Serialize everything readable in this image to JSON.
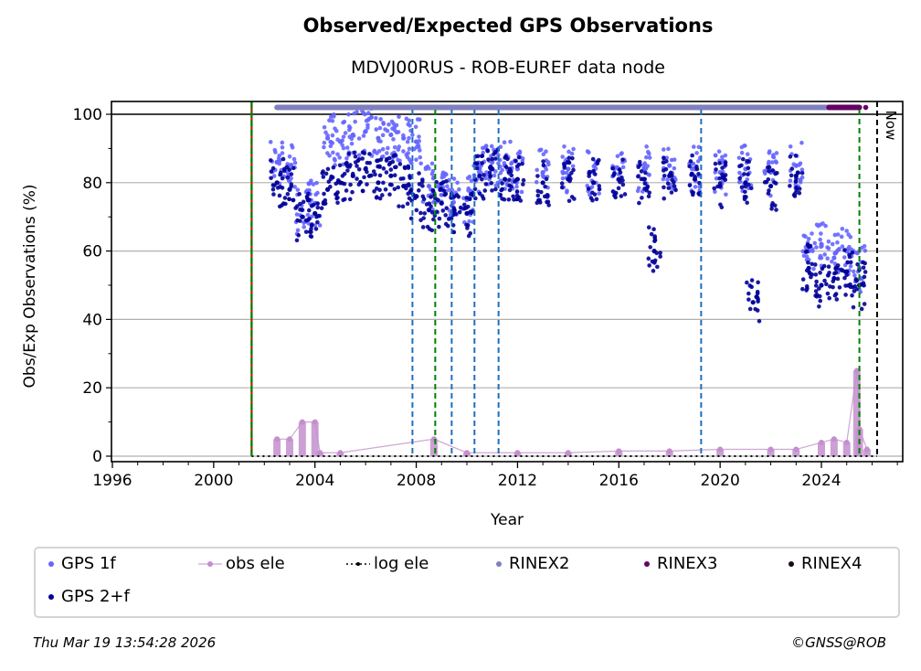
{
  "chart_data": {
    "type": "scatter",
    "title": "Observed/Expected GPS Observations",
    "subtitle": "MDVJ00RUS - ROB-EUREF data node",
    "xlabel": "Year",
    "ylabel": "Obs/Exp Observations (%)",
    "xlim": [
      1996,
      2027.2
    ],
    "ylim": [
      -1,
      103.5
    ],
    "xticks": [
      1996,
      2000,
      2004,
      2008,
      2012,
      2016,
      2020,
      2024
    ],
    "yticks": [
      0,
      20,
      40,
      60,
      80,
      100
    ],
    "grid": "horizontal",
    "legend_position": "bottom",
    "series": [
      {
        "name": "GPS 1f",
        "color": "#6666ff",
        "marker": "dot",
        "x": [
          2002.5,
          2003.0,
          2003.5,
          2004.0,
          2004.5,
          2005.0,
          2005.5,
          2006.0,
          2006.5,
          2007.0,
          2007.5,
          2008.0,
          2008.5,
          2009.0,
          2009.5,
          2010.0,
          2010.5,
          2011.0,
          2011.5,
          2012.0,
          2013.0,
          2014.0,
          2015.0,
          2016.0,
          2017.0,
          2018.0,
          2019.0,
          2020.0,
          2021.0,
          2022.0,
          2023.0,
          2023.5,
          2024.0,
          2024.5,
          2025.0,
          2025.5
        ],
        "y": [
          86,
          85,
          72,
          74,
          93,
          92,
          94,
          95,
          93,
          94,
          93,
          92,
          79,
          78,
          76,
          75,
          84,
          86,
          85,
          84,
          83,
          84,
          83,
          84,
          84,
          85,
          84,
          83,
          84,
          83,
          85,
          60,
          62,
          58,
          60,
          55
        ]
      },
      {
        "name": "GPS 2+f",
        "color": "#000099",
        "marker": "dot",
        "x": [
          2002.5,
          2003.0,
          2003.5,
          2004.0,
          2004.5,
          2005.0,
          2005.5,
          2006.0,
          2006.5,
          2007.0,
          2007.5,
          2008.0,
          2008.5,
          2009.0,
          2009.5,
          2010.0,
          2010.5,
          2011.0,
          2011.5,
          2012.0,
          2013.0,
          2014.0,
          2015.0,
          2016.0,
          2017.0,
          2017.4,
          2018.0,
          2019.0,
          2020.0,
          2021.0,
          2021.3,
          2022.0,
          2023.0,
          2023.5,
          2024.0,
          2024.5,
          2025.0,
          2025.5
        ],
        "y": [
          80,
          78,
          70,
          71,
          78,
          80,
          82,
          84,
          80,
          82,
          79,
          76,
          72,
          74,
          72,
          71,
          82,
          84,
          81,
          81,
          80,
          81,
          80,
          81,
          81,
          60,
          82,
          81,
          79,
          80,
          45,
          79,
          82,
          55,
          50,
          52,
          54,
          50
        ]
      },
      {
        "name": "obs ele",
        "color": "#c38fcc",
        "marker": "line-dot",
        "x": [
          2002.5,
          2003.0,
          2003.5,
          2004.0,
          2004.2,
          2005.0,
          2008.7,
          2010.0,
          2012.0,
          2014.0,
          2016.0,
          2018.0,
          2020.0,
          2022.0,
          2023.0,
          2024.0,
          2024.5,
          2025.0,
          2025.4,
          2025.5,
          2025.8
        ],
        "y": [
          5,
          5,
          10,
          10,
          1,
          1,
          5,
          1,
          1,
          1,
          1.5,
          1.5,
          2,
          2,
          2,
          4,
          5,
          4,
          25,
          8,
          2
        ]
      },
      {
        "name": "log ele",
        "color": "#000000",
        "marker": "dotted-line",
        "x": [
          2001.5,
          2026.2
        ],
        "y": [
          0,
          0
        ]
      },
      {
        "name": "RINEX2",
        "color": "#8080bf",
        "marker": "bar",
        "x": [
          2002.5,
          2024.3
        ],
        "y": [
          102,
          102
        ]
      },
      {
        "name": "RINEX3",
        "color": "#660066",
        "marker": "bar",
        "x": [
          2024.3,
          2025.5
        ],
        "y": [
          102,
          102
        ]
      },
      {
        "name": "RINEX4",
        "color": "#1a0a1a",
        "marker": "dot",
        "x": [],
        "y": []
      }
    ],
    "vlines": [
      {
        "x": 2001.5,
        "style": "solid-red-green",
        "color": "#008000"
      },
      {
        "x": 2007.85,
        "style": "dashed",
        "color": "#1f6fbf"
      },
      {
        "x": 2008.75,
        "style": "dashed",
        "color": "#008000"
      },
      {
        "x": 2009.4,
        "style": "dashed",
        "color": "#1f6fbf"
      },
      {
        "x": 2010.3,
        "style": "dashed",
        "color": "#1f6fbf"
      },
      {
        "x": 2011.25,
        "style": "dashed",
        "color": "#1f6fbf"
      },
      {
        "x": 2019.25,
        "style": "dashed",
        "color": "#1f6fbf"
      },
      {
        "x": 2025.5,
        "style": "dashed",
        "color": "#008000"
      },
      {
        "x": 2026.2,
        "style": "dashed",
        "color": "#000000",
        "label": "Now"
      }
    ],
    "annotations": [
      "Now"
    ]
  },
  "legend": [
    {
      "label": "GPS 1f",
      "color": "#6666ff"
    },
    {
      "label": "obs ele",
      "color": "#c38fcc"
    },
    {
      "label": "log ele",
      "color": "#000000"
    },
    {
      "label": "RINEX2",
      "color": "#8080bf"
    },
    {
      "label": "RINEX3",
      "color": "#660066"
    },
    {
      "label": "RINEX4",
      "color": "#1a0a1a"
    },
    {
      "label": "GPS 2+f",
      "color": "#000099"
    }
  ],
  "footer": {
    "date": "Thu Mar 19 13:54:28 2026",
    "copyright": "©GNSS@ROB"
  }
}
